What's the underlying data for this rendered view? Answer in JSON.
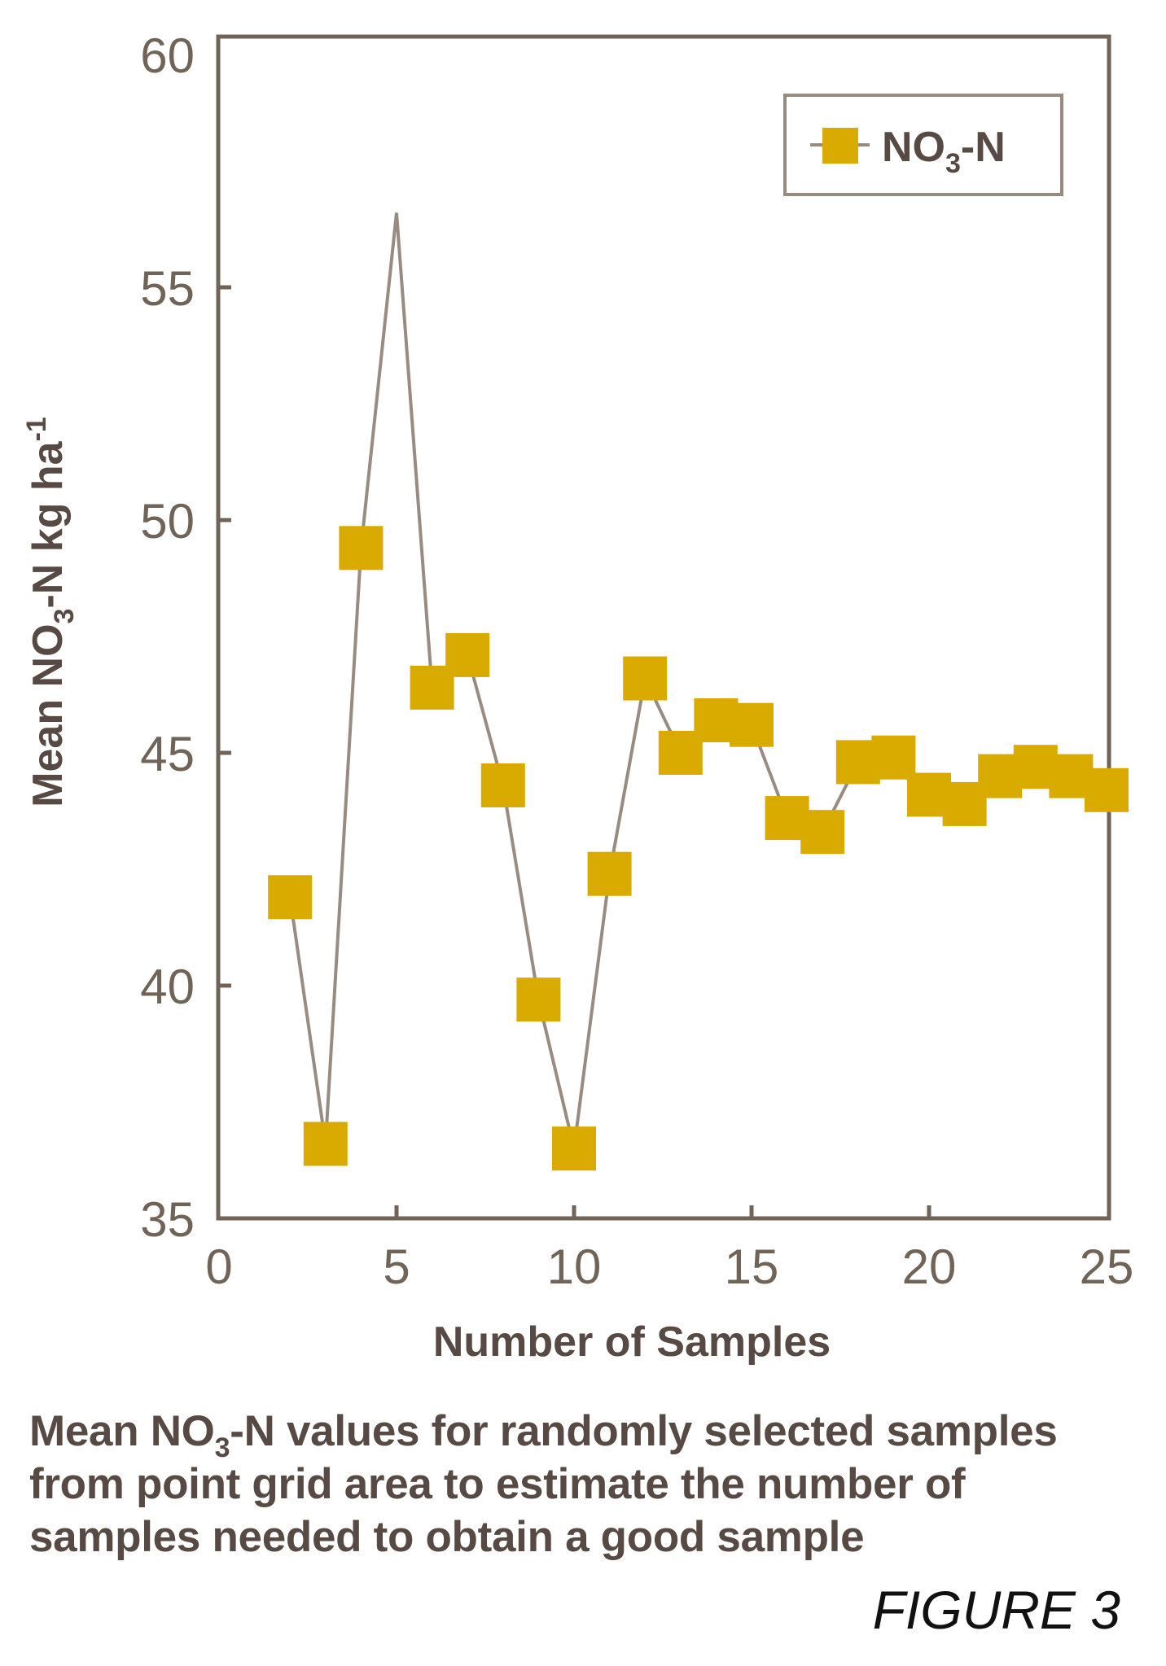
{
  "chart_data": {
    "type": "line",
    "title": "",
    "xlabel": "Number of Samples",
    "ylabel": "Mean NO3-N kg ha-1",
    "ylabel_parts": {
      "pre": "Mean NO",
      "sub": "3",
      "mid": "-N kg ha",
      "sup": "-1"
    },
    "xlim": [
      0,
      25
    ],
    "ylim": [
      35,
      60
    ],
    "x_ticks": [
      0,
      5,
      10,
      15,
      20,
      25
    ],
    "y_ticks": [
      35,
      40,
      45,
      50,
      55,
      60
    ],
    "grid": false,
    "legend_position": "upper right",
    "series": [
      {
        "name": "NO3-N",
        "name_parts": {
          "pre": "NO",
          "sub": "3",
          "post": "-N"
        },
        "marker": "square",
        "marker_color": "#d9ab00",
        "line_color": "#988c82",
        "x": [
          2,
          3,
          4,
          5,
          6,
          7,
          8,
          9,
          10,
          11,
          12,
          13,
          14,
          15,
          16,
          17,
          18,
          19,
          20,
          21,
          22,
          23,
          24,
          25
        ],
        "values": [
          41.9,
          36.6,
          49.4,
          56.6,
          46.4,
          47.1,
          44.3,
          39.7,
          36.5,
          42.4,
          46.6,
          45.0,
          45.7,
          45.6,
          43.6,
          43.3,
          44.8,
          44.9,
          44.1,
          43.9,
          44.5,
          44.7,
          44.5,
          44.2
        ],
        "marker_hidden_at_x": [
          5
        ]
      }
    ]
  },
  "colors": {
    "axis": "#706459",
    "legend_border": "#978a80",
    "text": "#574a44",
    "marker": "#d9ab00",
    "line": "#988c82"
  },
  "caption": {
    "line1_pre": "Mean NO",
    "line1_sub": "3",
    "line1_post": "-N values for randomly selected samples",
    "line2": "from point grid area to estimate the number of",
    "line3": "samples needed to obtain a good sample"
  },
  "figure_label": "FIGURE 3"
}
